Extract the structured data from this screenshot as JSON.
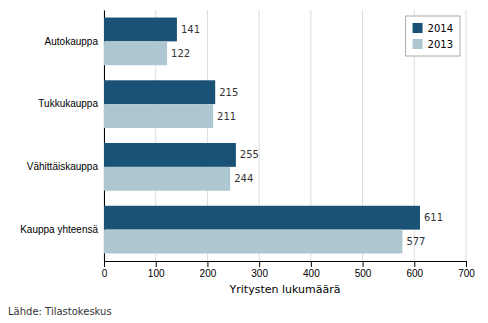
{
  "chart_data": {
    "type": "bar",
    "orientation": "horizontal",
    "categories": [
      "Kauppa yhteensä",
      "Vähittäiskauppa",
      "Tukkukauppa",
      "Autokauppa"
    ],
    "series": [
      {
        "name": "2014",
        "color": "#1A5276",
        "values": [
          611,
          255,
          215,
          141
        ]
      },
      {
        "name": "2013",
        "color": "#AEC6CF",
        "values": [
          577,
          244,
          211,
          122
        ]
      }
    ],
    "xlabel": "Yritysten lukumäärä",
    "xlim": [
      0,
      700
    ],
    "xticks": [
      0,
      100,
      200,
      300,
      400,
      500,
      600,
      700
    ],
    "grid": true,
    "legend": "upper-right",
    "data_labels": true,
    "source": "Lähde: Tilastokeskus"
  }
}
